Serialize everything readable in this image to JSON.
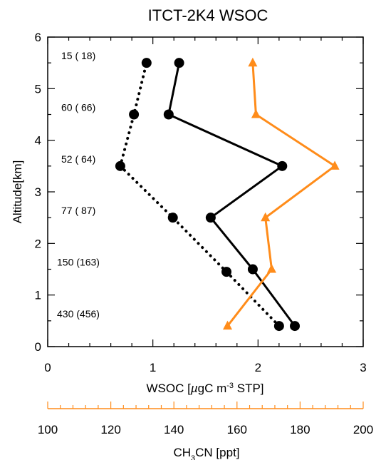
{
  "chart_data": {
    "type": "line",
    "title": "ITCT-2K4 WSOC",
    "xlabel": "WSOC [µgC m⁻³ STP]",
    "xlabel_parts": {
      "main": "WSOC [",
      "mu": "µ",
      "rest": "gC m",
      "sup": "-3",
      "end": " STP]"
    },
    "ylabel": "Altitude[km]",
    "xlim": [
      0,
      3
    ],
    "ylim": [
      0,
      6
    ],
    "xticks": [
      "0",
      "1",
      "2",
      "3"
    ],
    "yticks": [
      "0",
      "1",
      "2",
      "3",
      "4",
      "5",
      "6"
    ],
    "secondary_x": {
      "label": "CH3CN [ppt]",
      "label_parts": {
        "main": "CH",
        "sub": "3",
        "rest": "CN [ppt]"
      },
      "lim": [
        100,
        200
      ],
      "ticks": [
        "100",
        "120",
        "140",
        "160",
        "180",
        "200"
      ],
      "color": "#ff8c1a"
    },
    "counts": [
      {
        "label": "15 ( 18)",
        "y": 5.5
      },
      {
        "label": "60 ( 66)",
        "y": 4.5
      },
      {
        "label": "52 ( 64)",
        "y": 3.5
      },
      {
        "label": "77 ( 87)",
        "y": 2.5
      },
      {
        "label": "150 (163)",
        "y": 1.5
      },
      {
        "label": "430 (456)",
        "y": 0.5
      }
    ],
    "series": [
      {
        "style": "solid",
        "marker": "circle",
        "color": "#000000",
        "x": [
          2.35,
          1.95,
          1.55,
          2.23,
          1.15,
          1.25
        ],
        "y": [
          0.4,
          1.5,
          2.5,
          3.5,
          4.5,
          5.5
        ]
      },
      {
        "style": "dotted",
        "marker": "circle",
        "color": "#000000",
        "x": [
          2.2,
          1.7,
          1.19,
          0.69,
          0.82,
          0.94
        ],
        "y": [
          0.4,
          1.45,
          2.5,
          3.5,
          4.5,
          5.5
        ]
      },
      {
        "style": "solid",
        "marker": "triangle",
        "color": "#ff8c1a",
        "axis": "secondary",
        "x": [
          157,
          171,
          169,
          191,
          166,
          165
        ],
        "y": [
          0.4,
          1.5,
          2.5,
          3.5,
          4.5,
          5.5
        ]
      }
    ]
  }
}
